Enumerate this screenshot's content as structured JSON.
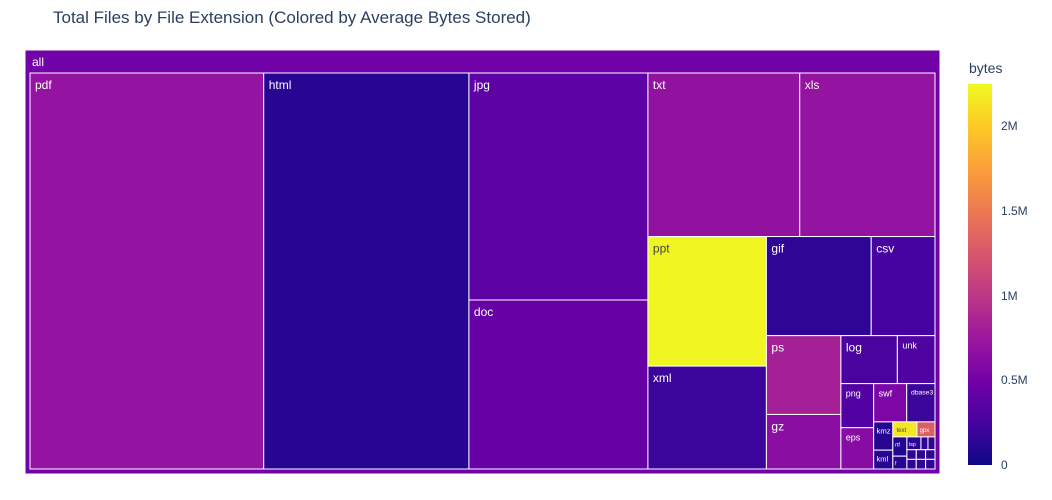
{
  "title": "Total Files by File Extension (Colored by Average Bytes Stored)",
  "chart_data": {
    "type": "treemap",
    "root_label": "all",
    "value_field": "files",
    "color_field": "bytes",
    "colorbar": {
      "title": "bytes",
      "range": [
        0,
        2250000
      ],
      "ticks": [
        {
          "value": 0,
          "label": "0"
        },
        {
          "value": 500000,
          "label": "0.5M"
        },
        {
          "value": 1000000,
          "label": "1M"
        },
        {
          "value": 1500000,
          "label": "1.5M"
        },
        {
          "value": 2000000,
          "label": "2M"
        }
      ],
      "colorscale": [
        "#0d0887",
        "#46039f",
        "#7201a8",
        "#9c179e",
        "#bd3786",
        "#d8576b",
        "#ed7953",
        "#fb9f3a",
        "#fdca26",
        "#f0f921"
      ]
    },
    "items": [
      {
        "label": "pdf",
        "files": 205,
        "bytes": 700000
      },
      {
        "label": "html",
        "files": 180,
        "bytes": 120000
      },
      {
        "label": "jpg",
        "files": 90,
        "bytes": 380000
      },
      {
        "label": "doc",
        "files": 67,
        "bytes": 430000
      },
      {
        "label": "txt",
        "files": 55,
        "bytes": 690000
      },
      {
        "label": "xls",
        "files": 49,
        "bytes": 700000
      },
      {
        "label": "ppt",
        "files": 34,
        "bytes": 2230000
      },
      {
        "label": "gif",
        "files": 23,
        "bytes": 150000
      },
      {
        "label": "ps",
        "files": 13,
        "bytes": 820000
      },
      {
        "label": "xml",
        "files": 27,
        "bytes": 200000
      },
      {
        "label": "csv",
        "files": 14,
        "bytes": 250000
      },
      {
        "label": "gz",
        "files": 9,
        "bytes": 650000
      },
      {
        "label": "log",
        "files": 6,
        "bytes": 280000
      },
      {
        "label": "unk",
        "files": 4,
        "bytes": 300000
      },
      {
        "label": "eps",
        "files": 3,
        "bytes": 620000
      },
      {
        "label": "swf",
        "files": 2.8,
        "bytes": 560000
      },
      {
        "label": "dbase3",
        "files": 2.4,
        "bytes": 200000
      },
      {
        "label": "png",
        "files": 3.2,
        "bytes": 320000
      },
      {
        "label": "kmz",
        "files": 1.2,
        "bytes": 100000
      },
      {
        "label": "kml",
        "files": 0.8,
        "bytes": 120000
      },
      {
        "label": "gpx",
        "files": 0.6,
        "bytes": 1300000
      },
      {
        "label": "rtf",
        "files": 0.6,
        "bytes": 90000
      },
      {
        "label": "text",
        "files": 0.8,
        "bytes": 2150000
      },
      {
        "label": "f",
        "files": 0.4,
        "bytes": 120000
      },
      {
        "label": "tsp",
        "files": 0.4,
        "bytes": 120000
      },
      {
        "label": "",
        "files": 0.2,
        "bytes": 150000
      },
      {
        "label": "",
        "files": 0.2,
        "bytes": 150000
      },
      {
        "label": "",
        "files": 0.2,
        "bytes": 150000
      },
      {
        "label": "",
        "files": 0.2,
        "bytes": 150000
      },
      {
        "label": "",
        "files": 0.2,
        "bytes": 150000
      },
      {
        "label": "",
        "files": 0.2,
        "bytes": 150000
      },
      {
        "label": "",
        "files": 0.2,
        "bytes": 150000
      },
      {
        "label": "",
        "files": 0.2,
        "bytes": 150000
      }
    ]
  }
}
